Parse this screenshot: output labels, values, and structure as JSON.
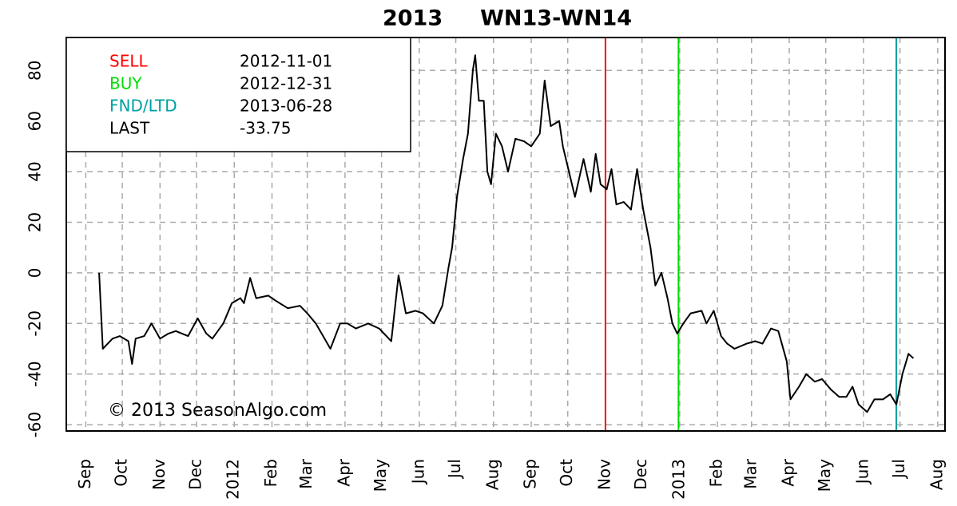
{
  "chart_data": {
    "type": "line",
    "title": "2013     WN13-WN14",
    "annotation": "© 2013 SeasonAlgo.com",
    "legend": {
      "corner": "upper-left",
      "items": [
        {
          "label": "SELL",
          "value": "2012-11-01",
          "color": "#ff0000"
        },
        {
          "label": "BUY",
          "value": "2012-12-31",
          "color": "#00dd00"
        },
        {
          "label": "FND/LTD",
          "value": "2013-06-28",
          "color": "#00a0a0"
        },
        {
          "label": "LAST",
          "value": -33.75,
          "color": "#000000"
        }
      ]
    },
    "grid": true,
    "xlim": [
      "2011-08-16",
      "2013-08-07"
    ],
    "ylim": [
      -62.5,
      93
    ],
    "yticks": [
      -60,
      -40,
      -20,
      0,
      20,
      40,
      60,
      80
    ],
    "xticks": [
      {
        "value": "2011-09-01",
        "label": "Sep"
      },
      {
        "value": "2011-10-01",
        "label": "Oct"
      },
      {
        "value": "2011-11-01",
        "label": "Nov"
      },
      {
        "value": "2011-12-01",
        "label": "Dec"
      },
      {
        "value": "2012-01-01",
        "label": "2012"
      },
      {
        "value": "2012-02-01",
        "label": "Feb"
      },
      {
        "value": "2012-03-01",
        "label": "Mar"
      },
      {
        "value": "2012-04-01",
        "label": "Apr"
      },
      {
        "value": "2012-05-01",
        "label": "May"
      },
      {
        "value": "2012-06-01",
        "label": "Jun"
      },
      {
        "value": "2012-07-01",
        "label": "Jul"
      },
      {
        "value": "2012-08-01",
        "label": "Aug"
      },
      {
        "value": "2012-09-01",
        "label": "Sep"
      },
      {
        "value": "2012-10-01",
        "label": "Oct"
      },
      {
        "value": "2012-11-01",
        "label": "Nov"
      },
      {
        "value": "2012-12-01",
        "label": "Dec"
      },
      {
        "value": "2013-01-01",
        "label": "2013"
      },
      {
        "value": "2013-02-01",
        "label": "Feb"
      },
      {
        "value": "2013-03-01",
        "label": "Mar"
      },
      {
        "value": "2013-04-01",
        "label": "Apr"
      },
      {
        "value": "2013-05-01",
        "label": "May"
      },
      {
        "value": "2013-06-01",
        "label": "Jun"
      },
      {
        "value": "2013-07-01",
        "label": "Jul"
      },
      {
        "value": "2013-08-01",
        "label": "Aug"
      }
    ],
    "series": [
      {
        "color": "#000000",
        "x": [
          "2011-09-12",
          "2011-09-15",
          "2011-09-23",
          "2011-09-29",
          "2011-10-06",
          "2011-10-09",
          "2011-10-12",
          "2011-10-19",
          "2011-10-25",
          "2011-11-01",
          "2011-11-08",
          "2011-11-14",
          "2011-11-24",
          "2011-12-02",
          "2011-12-09",
          "2011-12-14",
          "2011-12-23",
          "2011-12-30",
          "2012-01-06",
          "2012-01-09",
          "2012-01-14",
          "2012-01-19",
          "2012-01-29",
          "2012-02-04",
          "2012-02-14",
          "2012-02-24",
          "2012-03-01",
          "2012-03-08",
          "2012-03-14",
          "2012-03-20",
          "2012-03-28",
          "2012-04-03",
          "2012-04-10",
          "2012-04-20",
          "2012-04-29",
          "2012-05-09",
          "2012-05-15",
          "2012-05-21",
          "2012-05-29",
          "2012-06-04",
          "2012-06-13",
          "2012-06-20",
          "2012-06-25",
          "2012-06-28",
          "2012-07-02",
          "2012-07-07",
          "2012-07-11",
          "2012-07-15",
          "2012-07-17",
          "2012-07-20",
          "2012-07-24",
          "2012-07-27",
          "2012-07-30",
          "2012-08-03",
          "2012-08-08",
          "2012-08-13",
          "2012-08-19",
          "2012-08-26",
          "2012-09-01",
          "2012-09-08",
          "2012-09-12",
          "2012-09-17",
          "2012-09-24",
          "2012-09-27",
          "2012-10-02",
          "2012-10-07",
          "2012-10-14",
          "2012-10-20",
          "2012-10-24",
          "2012-10-28",
          "2012-11-02",
          "2012-11-06",
          "2012-11-10",
          "2012-11-16",
          "2012-11-22",
          "2012-11-27",
          "2012-12-02",
          "2012-12-08",
          "2012-12-12",
          "2012-12-17",
          "2012-12-22",
          "2012-12-26",
          "2012-12-30",
          "2013-01-04",
          "2013-01-10",
          "2013-01-19",
          "2013-01-23",
          "2013-01-29",
          "2013-02-04",
          "2013-02-09",
          "2013-02-15",
          "2013-02-25",
          "2013-03-04",
          "2013-03-10",
          "2013-03-17",
          "2013-03-23",
          "2013-03-30",
          "2013-04-02",
          "2013-04-09",
          "2013-04-15",
          "2013-04-22",
          "2013-04-28",
          "2013-05-05",
          "2013-05-12",
          "2013-05-18",
          "2013-05-23",
          "2013-05-28",
          "2013-06-04",
          "2013-06-10",
          "2013-06-17",
          "2013-06-23",
          "2013-06-28",
          "2013-07-03",
          "2013-07-08",
          "2013-07-12"
        ],
        "values": [
          0,
          -30,
          -26,
          -25,
          -27,
          -36,
          -26,
          -25,
          -20,
          -26,
          -24,
          -23,
          -25,
          -18,
          -24,
          -26,
          -20,
          -12,
          -10,
          -12,
          -2,
          -10,
          -9,
          -11,
          -14,
          -13,
          -16,
          -20,
          -25,
          -30,
          -20,
          -20,
          -22,
          -20,
          -22,
          -27,
          -1,
          -16,
          -15,
          -16,
          -20,
          -13,
          2,
          10,
          30,
          45,
          55,
          80,
          86,
          68,
          68,
          40,
          35,
          55,
          50,
          40,
          53,
          52,
          50,
          55,
          76,
          58,
          60,
          50,
          40,
          30,
          45,
          32,
          47,
          35,
          33,
          41,
          27,
          28,
          25,
          41,
          25,
          10,
          -5,
          0,
          -10,
          -20,
          -24,
          -20,
          -16,
          -15,
          -20,
          -15,
          -25,
          -28,
          -30,
          -28,
          -27,
          -28,
          -22,
          -23,
          -35,
          -50,
          -45,
          -40,
          -43,
          -42,
          -46,
          -49,
          -49,
          -45,
          -52,
          -55,
          -50,
          -50,
          -48,
          -52,
          -40,
          -32,
          -33.75
        ]
      }
    ]
  }
}
